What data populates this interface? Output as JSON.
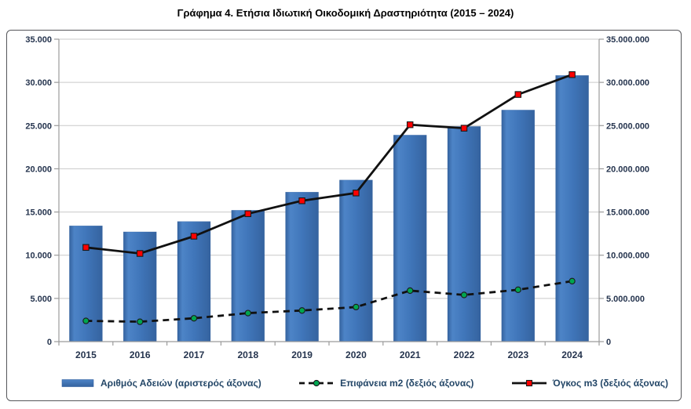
{
  "title": "Γράφημα 4. Ετήσια Ιδιωτική Οικοδομική Δραστηριότητα (2015 – 2024)",
  "chart_data": {
    "type": "bar",
    "subtype": "combo-bar-line",
    "categories": [
      "2015",
      "2016",
      "2017",
      "2018",
      "2019",
      "2020",
      "2021",
      "2022",
      "2023",
      "2024"
    ],
    "series": [
      {
        "name": "Αριθμός Αδειών (αριστερός άξονας)",
        "type": "bar",
        "axis": "left",
        "values": [
          13400,
          12700,
          13900,
          15200,
          17300,
          18700,
          23900,
          24900,
          26800,
          30800
        ]
      },
      {
        "name": "Επιφάνεια m2 (δεξιός άξονας)",
        "type": "line",
        "style": "dashed",
        "marker": "circle",
        "axis": "right",
        "values": [
          2400000,
          2300000,
          2700000,
          3300000,
          3600000,
          4000000,
          5900000,
          5400000,
          6000000,
          7000000
        ]
      },
      {
        "name": "Όγκος m3 (δεξιός άξονας)",
        "type": "line",
        "style": "solid",
        "marker": "square",
        "axis": "right",
        "values": [
          10900000,
          10200000,
          12200000,
          14800000,
          16300000,
          17200000,
          25100000,
          24700000,
          28600000,
          30900000
        ]
      }
    ],
    "left_axis": {
      "min": 0,
      "max": 35000,
      "step": 5000
    },
    "right_axis": {
      "min": 0,
      "max": 35000000,
      "step": 5000000
    },
    "grid": true,
    "legend_position": "bottom",
    "thousands_separator": "."
  },
  "legend": {
    "items": [
      {
        "label": "Αριθμός Αδειών (αριστερός άξονας)"
      },
      {
        "label": "Επιφάνεια m2 (δεξιός άξονας)"
      },
      {
        "label": "Όγκος m3 (δεξιός άξονας)"
      }
    ]
  },
  "colors": {
    "bar_main": "#4076ba",
    "bar_dark": "#35639f",
    "bar_light": "#4d84c7",
    "line": "#111111",
    "marker_red": "#fe0000",
    "marker_green": "#00a550",
    "marker_stroke": "#1a1a1a",
    "grid": "#c9c9c9",
    "axis": "#9b9b9b",
    "axis_text": "#25344e",
    "legend_text": "#234667",
    "frame_border": "#55565a"
  }
}
